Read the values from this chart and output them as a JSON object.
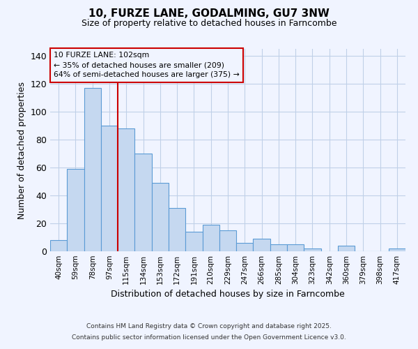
{
  "title": "10, FURZE LANE, GODALMING, GU7 3NW",
  "subtitle": "Size of property relative to detached houses in Farncombe",
  "xlabel": "Distribution of detached houses by size in Farncombe",
  "ylabel": "Number of detached properties",
  "categories": [
    "40sqm",
    "59sqm",
    "78sqm",
    "97sqm",
    "115sqm",
    "134sqm",
    "153sqm",
    "172sqm",
    "191sqm",
    "210sqm",
    "229sqm",
    "247sqm",
    "266sqm",
    "285sqm",
    "304sqm",
    "323sqm",
    "342sqm",
    "360sqm",
    "379sqm",
    "398sqm",
    "417sqm"
  ],
  "values": [
    8,
    59,
    117,
    90,
    88,
    70,
    49,
    31,
    14,
    19,
    15,
    6,
    9,
    5,
    5,
    2,
    0,
    4,
    0,
    0,
    2
  ],
  "bar_color": "#c5d8f0",
  "bar_edge_color": "#5b9bd5",
  "vline_position": 3,
  "smaller_pct": 35,
  "smaller_count": 209,
  "larger_pct": 64,
  "larger_count": 375,
  "vline_color": "#cc0000",
  "annotation_box_edge_color": "#cc0000",
  "ylim": [
    0,
    145
  ],
  "yticks": [
    0,
    20,
    40,
    60,
    80,
    100,
    120,
    140
  ],
  "grid_color": "#c0d0e8",
  "background_color": "#f0f4ff",
  "footer1": "Contains HM Land Registry data © Crown copyright and database right 2025.",
  "footer2": "Contains public sector information licensed under the Open Government Licence v3.0."
}
